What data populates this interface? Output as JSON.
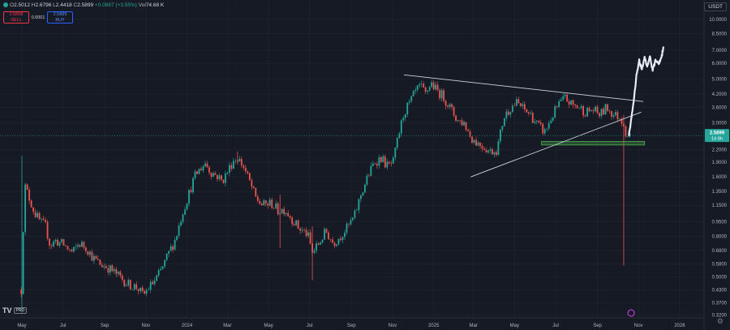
{
  "header": {
    "ohlc_o_label": "O",
    "ohlc_o_value": "2.5012",
    "ohlc_h_label": "H",
    "ohlc_h_value": "2.6796",
    "ohlc_l_label": "L",
    "ohlc_l_value": "2.4418",
    "ohlc_c_label": "C",
    "ohlc_c_value": "2.5899",
    "change": "+0.0887 (+3.55%)",
    "vol_label": "Vol",
    "vol_value": "74.68 K",
    "sell_price": "2.5898",
    "sell_label": "SELL",
    "spread": "0.0001",
    "buy_price": "2.5899",
    "buy_label": "BUY",
    "unit": "USDT",
    "logo": "TV",
    "logo_badge": "PRO"
  },
  "colors": {
    "up": "#26a69a",
    "down": "#ef5350",
    "background": "#161a25",
    "grid": "#222631",
    "projection": "#e8ebf2",
    "support_zone": "#4caf50"
  },
  "chart_data": {
    "type": "candlestick",
    "y_scale": "log",
    "ylim": [
      0.31,
      11
    ],
    "x_range": [
      "2023-04-25",
      "2026-01-30"
    ],
    "x_ticks": [
      {
        "date": "2023-05-01",
        "label": "May"
      },
      {
        "date": "2023-07-01",
        "label": "Jul"
      },
      {
        "date": "2023-09-01",
        "label": "Sep"
      },
      {
        "date": "2023-11-01",
        "label": "Nov"
      },
      {
        "date": "2024-01-01",
        "label": "2024"
      },
      {
        "date": "2024-03-01",
        "label": "Mar"
      },
      {
        "date": "2024-05-01",
        "label": "May"
      },
      {
        "date": "2024-07-01",
        "label": "Jul"
      },
      {
        "date": "2024-09-01",
        "label": "Sep"
      },
      {
        "date": "2024-11-01",
        "label": "Nov"
      },
      {
        "date": "2025-01-01",
        "label": "2025"
      },
      {
        "date": "2025-03-01",
        "label": "Mar"
      },
      {
        "date": "2025-05-01",
        "label": "May"
      },
      {
        "date": "2025-07-01",
        "label": "Jul"
      },
      {
        "date": "2025-09-01",
        "label": "Sep"
      },
      {
        "date": "2025-11-01",
        "label": "Nov"
      },
      {
        "date": "2026-01-01",
        "label": "2026"
      }
    ],
    "y_ticks": [
      {
        "v": 10.0,
        "label": "10.0000"
      },
      {
        "v": 8.5,
        "label": "8.5000"
      },
      {
        "v": 7.0,
        "label": "7.0000"
      },
      {
        "v": 6.0,
        "label": "6.0000"
      },
      {
        "v": 5.0,
        "label": "5.0000"
      },
      {
        "v": 4.2,
        "label": "4.2000"
      },
      {
        "v": 3.6,
        "label": "3.6000"
      },
      {
        "v": 3.0,
        "label": "3.0000"
      },
      {
        "v": 2.2,
        "label": "2.2000"
      },
      {
        "v": 1.9,
        "label": "1.9000"
      },
      {
        "v": 1.6,
        "label": "1.6000"
      },
      {
        "v": 1.35,
        "label": "1.3500"
      },
      {
        "v": 1.15,
        "label": "1.1500"
      },
      {
        "v": 0.95,
        "label": "0.9500"
      },
      {
        "v": 0.8,
        "label": "0.8000"
      },
      {
        "v": 0.68,
        "label": "0.6800"
      },
      {
        "v": 0.58,
        "label": "0.5800"
      },
      {
        "v": 0.5,
        "label": "0.5000"
      },
      {
        "v": 0.43,
        "label": "0.4300"
      },
      {
        "v": 0.37,
        "label": "0.3700"
      },
      {
        "v": 0.32,
        "label": "0.3200"
      }
    ],
    "last_price": {
      "value": 2.5899,
      "label": "2.5899",
      "countdown": "1d 8h"
    },
    "price_path": [
      {
        "date": "2023-04-30",
        "close": 0.43
      },
      {
        "date": "2023-05-05",
        "close": 1.45
      },
      {
        "date": "2023-05-12",
        "close": 1.25
      },
      {
        "date": "2023-05-20",
        "close": 1.05
      },
      {
        "date": "2023-05-28",
        "close": 0.95
      },
      {
        "date": "2023-06-05",
        "close": 0.9
      },
      {
        "date": "2023-06-12",
        "close": 0.72
      },
      {
        "date": "2023-06-20",
        "close": 0.76
      },
      {
        "date": "2023-07-01",
        "close": 0.73
      },
      {
        "date": "2023-07-15",
        "close": 0.66
      },
      {
        "date": "2023-07-25",
        "close": 0.74
      },
      {
        "date": "2023-08-05",
        "close": 0.7
      },
      {
        "date": "2023-08-15",
        "close": 0.62
      },
      {
        "date": "2023-08-25",
        "close": 0.58
      },
      {
        "date": "2023-09-05",
        "close": 0.56
      },
      {
        "date": "2023-09-20",
        "close": 0.51
      },
      {
        "date": "2023-10-05",
        "close": 0.46
      },
      {
        "date": "2023-10-20",
        "close": 0.44
      },
      {
        "date": "2023-10-28",
        "close": 0.4
      },
      {
        "date": "2023-11-05",
        "close": 0.44
      },
      {
        "date": "2023-11-15",
        "close": 0.48
      },
      {
        "date": "2023-11-25",
        "close": 0.55
      },
      {
        "date": "2023-12-05",
        "close": 0.66
      },
      {
        "date": "2023-12-15",
        "close": 0.78
      },
      {
        "date": "2023-12-25",
        "close": 1.05
      },
      {
        "date": "2024-01-05",
        "close": 1.35
      },
      {
        "date": "2024-01-12",
        "close": 1.6
      },
      {
        "date": "2024-01-20",
        "close": 1.75
      },
      {
        "date": "2024-01-28",
        "close": 1.88
      },
      {
        "date": "2024-02-05",
        "close": 1.7
      },
      {
        "date": "2024-02-15",
        "close": 1.62
      },
      {
        "date": "2024-02-22",
        "close": 1.52
      },
      {
        "date": "2024-03-01",
        "close": 1.7
      },
      {
        "date": "2024-03-10",
        "close": 1.95
      },
      {
        "date": "2024-03-16",
        "close": 2.0
      },
      {
        "date": "2024-03-25",
        "close": 1.8
      },
      {
        "date": "2024-04-05",
        "close": 1.45
      },
      {
        "date": "2024-04-12",
        "close": 1.25
      },
      {
        "date": "2024-04-22",
        "close": 1.15
      },
      {
        "date": "2024-05-05",
        "close": 1.18
      },
      {
        "date": "2024-05-15",
        "close": 1.08
      },
      {
        "date": "2024-05-25",
        "close": 1.1
      },
      {
        "date": "2024-06-05",
        "close": 0.98
      },
      {
        "date": "2024-06-15",
        "close": 0.88
      },
      {
        "date": "2024-06-28",
        "close": 0.82
      },
      {
        "date": "2024-07-05",
        "close": 0.66
      },
      {
        "date": "2024-07-15",
        "close": 0.74
      },
      {
        "date": "2024-07-25",
        "close": 0.85
      },
      {
        "date": "2024-08-05",
        "close": 0.74
      },
      {
        "date": "2024-08-15",
        "close": 0.8
      },
      {
        "date": "2024-08-25",
        "close": 0.88
      },
      {
        "date": "2024-09-05",
        "close": 1.0
      },
      {
        "date": "2024-09-15",
        "close": 1.3
      },
      {
        "date": "2024-09-25",
        "close": 1.6
      },
      {
        "date": "2024-10-05",
        "close": 1.9
      },
      {
        "date": "2024-10-15",
        "close": 2.0
      },
      {
        "date": "2024-10-25",
        "close": 1.8
      },
      {
        "date": "2024-11-02",
        "close": 1.9
      },
      {
        "date": "2024-11-10",
        "close": 2.6
      },
      {
        "date": "2024-11-18",
        "close": 3.4
      },
      {
        "date": "2024-11-25",
        "close": 3.7
      },
      {
        "date": "2024-12-05",
        "close": 4.3
      },
      {
        "date": "2024-12-12",
        "close": 4.6
      },
      {
        "date": "2024-12-20",
        "close": 4.2
      },
      {
        "date": "2024-12-28",
        "close": 4.8
      },
      {
        "date": "2025-01-05",
        "close": 4.4
      },
      {
        "date": "2025-01-15",
        "close": 4.1
      },
      {
        "date": "2025-01-25",
        "close": 3.6
      },
      {
        "date": "2025-02-05",
        "close": 3.1
      },
      {
        "date": "2025-02-15",
        "close": 3.0
      },
      {
        "date": "2025-02-25",
        "close": 2.55
      },
      {
        "date": "2025-03-05",
        "close": 2.4
      },
      {
        "date": "2025-03-15",
        "close": 2.3
      },
      {
        "date": "2025-03-25",
        "close": 2.15
      },
      {
        "date": "2025-04-05",
        "close": 2.2
      },
      {
        "date": "2025-04-15",
        "close": 3.2
      },
      {
        "date": "2025-04-25",
        "close": 3.6
      },
      {
        "date": "2025-05-05",
        "close": 3.8
      },
      {
        "date": "2025-05-15",
        "close": 3.5
      },
      {
        "date": "2025-05-25",
        "close": 3.3
      },
      {
        "date": "2025-06-05",
        "close": 2.9
      },
      {
        "date": "2025-06-15",
        "close": 2.7
      },
      {
        "date": "2025-06-25",
        "close": 3.2
      },
      {
        "date": "2025-07-05",
        "close": 3.7
      },
      {
        "date": "2025-07-15",
        "close": 4.0
      },
      {
        "date": "2025-07-25",
        "close": 3.7
      },
      {
        "date": "2025-08-05",
        "close": 3.6
      },
      {
        "date": "2025-08-15",
        "close": 3.4
      },
      {
        "date": "2025-08-25",
        "close": 3.5
      },
      {
        "date": "2025-09-05",
        "close": 3.3
      },
      {
        "date": "2025-09-15",
        "close": 3.6
      },
      {
        "date": "2025-09-25",
        "close": 3.3
      },
      {
        "date": "2025-10-05",
        "close": 3.2
      },
      {
        "date": "2025-10-10",
        "close": 3.0
      },
      {
        "date": "2025-10-14",
        "close": 2.6
      },
      {
        "date": "2025-10-20",
        "close": 2.59
      }
    ],
    "wicks": [
      {
        "date": "2023-05-01",
        "high": 2.05,
        "low": 0.33
      },
      {
        "date": "2024-03-16",
        "high": 2.15,
        "low": 1.85
      },
      {
        "date": "2024-05-18",
        "high": 1.3,
        "low": 0.7
      },
      {
        "date": "2024-07-05",
        "high": 0.9,
        "low": 0.48
      },
      {
        "date": "2025-10-10",
        "high": 3.3,
        "low": 0.57
      }
    ],
    "projection": [
      {
        "date": "2025-10-17",
        "value": 2.55
      },
      {
        "date": "2025-10-21",
        "value": 3.1
      },
      {
        "date": "2025-10-25",
        "value": 3.9
      },
      {
        "date": "2025-10-29",
        "value": 5.2
      },
      {
        "date": "2025-11-02",
        "value": 6.2
      },
      {
        "date": "2025-11-06",
        "value": 5.6
      },
      {
        "date": "2025-11-10",
        "value": 6.4
      },
      {
        "date": "2025-11-14",
        "value": 5.8
      },
      {
        "date": "2025-11-18",
        "value": 6.5
      },
      {
        "date": "2025-11-22",
        "value": 5.5
      },
      {
        "date": "2025-11-26",
        "value": 6.2
      },
      {
        "date": "2025-12-01",
        "value": 6.0
      },
      {
        "date": "2025-12-05",
        "value": 6.4
      },
      {
        "date": "2025-12-08",
        "value": 7.3
      }
    ],
    "trendlines": [
      {
        "from": {
          "date": "2024-11-18",
          "value": 5.25
        },
        "to": {
          "date": "2025-11-08",
          "value": 3.85
        }
      },
      {
        "from": {
          "date": "2025-02-25",
          "value": 1.6
        },
        "to": {
          "date": "2025-11-05",
          "value": 3.4
        }
      }
    ],
    "zone": {
      "from": "2025-06-10",
      "to": "2025-11-10",
      "high": 2.42,
      "low": 2.32
    }
  }
}
